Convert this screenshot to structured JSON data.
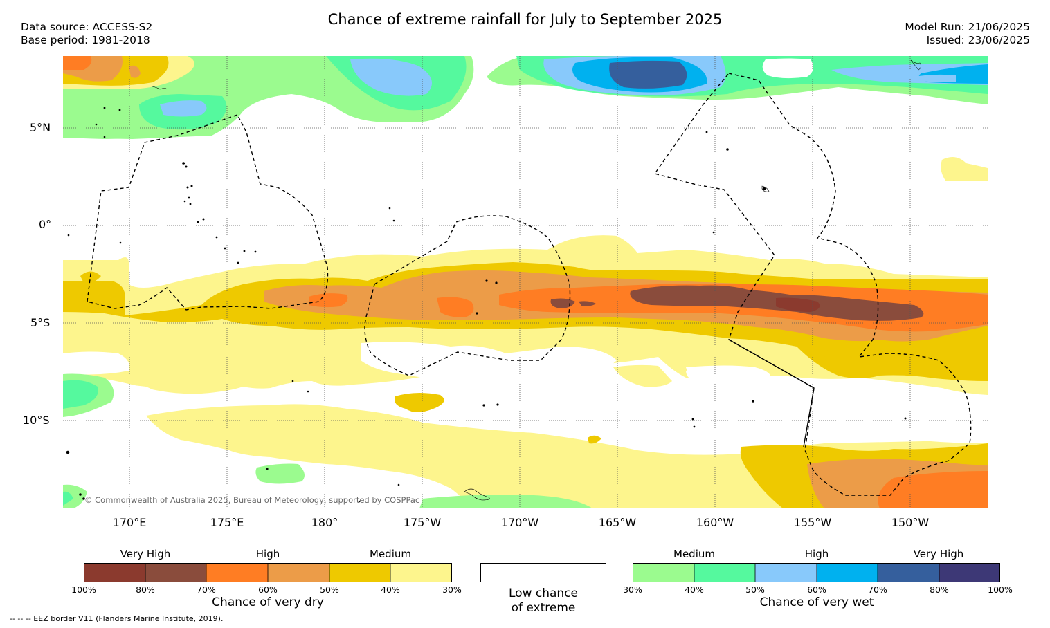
{
  "title": "Chance of extreme rainfall for July to September 2025",
  "data_source": "Data source: ACCESS-S2",
  "base_period": "Base period: 1981-2018",
  "model_run": "Model Run: 21/06/2025",
  "issued": "Issued: 23/06/2025",
  "copyright": "© Commonwealth of Australia 2025, Bureau of Meteorology, supported by COSPPac",
  "footer_note": "--  --  -- EEZ border V11 (Flanders Marine Institute, 2019).",
  "map": {
    "lat_labels": [
      "5°N",
      "0°",
      "5°S",
      "10°S"
    ],
    "lon_labels": [
      "170°E",
      "175°E",
      "180°",
      "175°W",
      "170°W",
      "165°W",
      "160°W",
      "155°W",
      "150°W"
    ]
  },
  "legend": {
    "dry": {
      "title": "Chance of very dry",
      "tiers": [
        "Very High",
        "High",
        "Medium"
      ],
      "ticks": [
        "100%",
        "80%",
        "70%",
        "60%",
        "50%",
        "40%",
        "30%"
      ],
      "colors": [
        "#8b3a2e",
        "#8a4c3c",
        "#ff7d23",
        "#ec9c48",
        "#eec900",
        "#fdf58d"
      ]
    },
    "low": {
      "line1": "Low chance",
      "line2": "of extreme",
      "color": "#ffffff"
    },
    "wet": {
      "title": "Chance of very wet",
      "tiers": [
        "Medium",
        "High",
        "Very High"
      ],
      "ticks": [
        "30%",
        "40%",
        "50%",
        "60%",
        "70%",
        "80%",
        "100%"
      ],
      "colors": [
        "#9bfb8f",
        "#55f99e",
        "#88c9fb",
        "#00b1ef",
        "#355f9d",
        "#3d3876"
      ]
    }
  }
}
